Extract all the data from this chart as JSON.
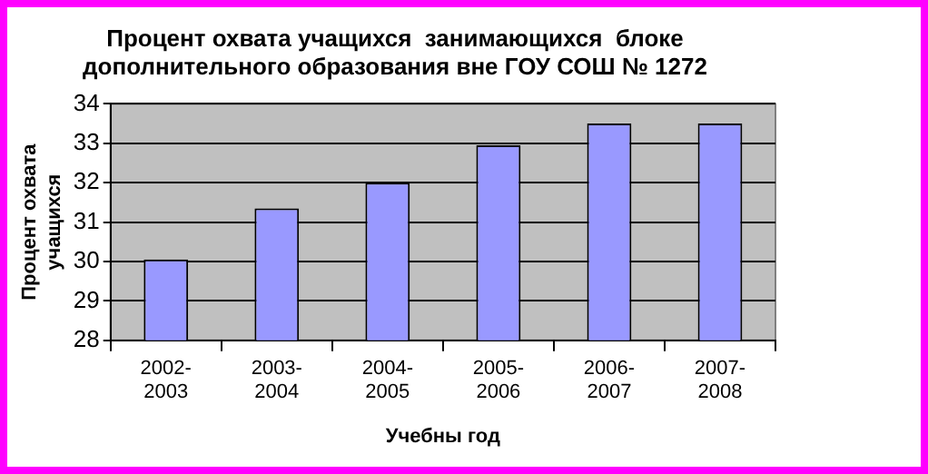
{
  "chart_data": {
    "type": "bar",
    "title": "Процент охвата учащихся  занимающихся  блоке дополнительного образования вне ГОУ СОШ № 1272",
    "xlabel": "Учебны год",
    "ylabel": "Процент охвата учащихся",
    "categories": [
      "2002-2003",
      "2003-2004",
      "2004-2005",
      "2005-2006",
      "2006-2007",
      "2007-2008"
    ],
    "values": [
      30.05,
      31.35,
      32,
      32.95,
      33.5,
      33.5
    ],
    "color": "#9999ff",
    "ylim": [
      28,
      34
    ],
    "yticks": [
      28,
      29,
      30,
      31,
      32,
      33,
      34
    ],
    "grid": "y",
    "legend": false
  }
}
